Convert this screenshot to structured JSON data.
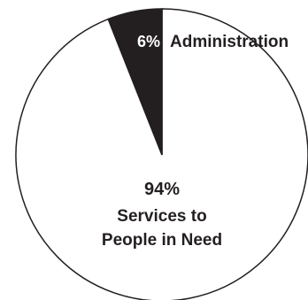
{
  "chart_data": {
    "type": "pie",
    "slices": [
      {
        "percent_label": "6%",
        "name": "Administration",
        "value": 6,
        "color": "#231f20"
      },
      {
        "percent_label": "94%",
        "name_lines": [
          "Services to",
          "People in Need"
        ],
        "value": 94,
        "color": "#ffffff"
      }
    ],
    "start_angle": "12 o'clock",
    "direction": "counter-clockwise",
    "outline_color": "#231f20"
  }
}
